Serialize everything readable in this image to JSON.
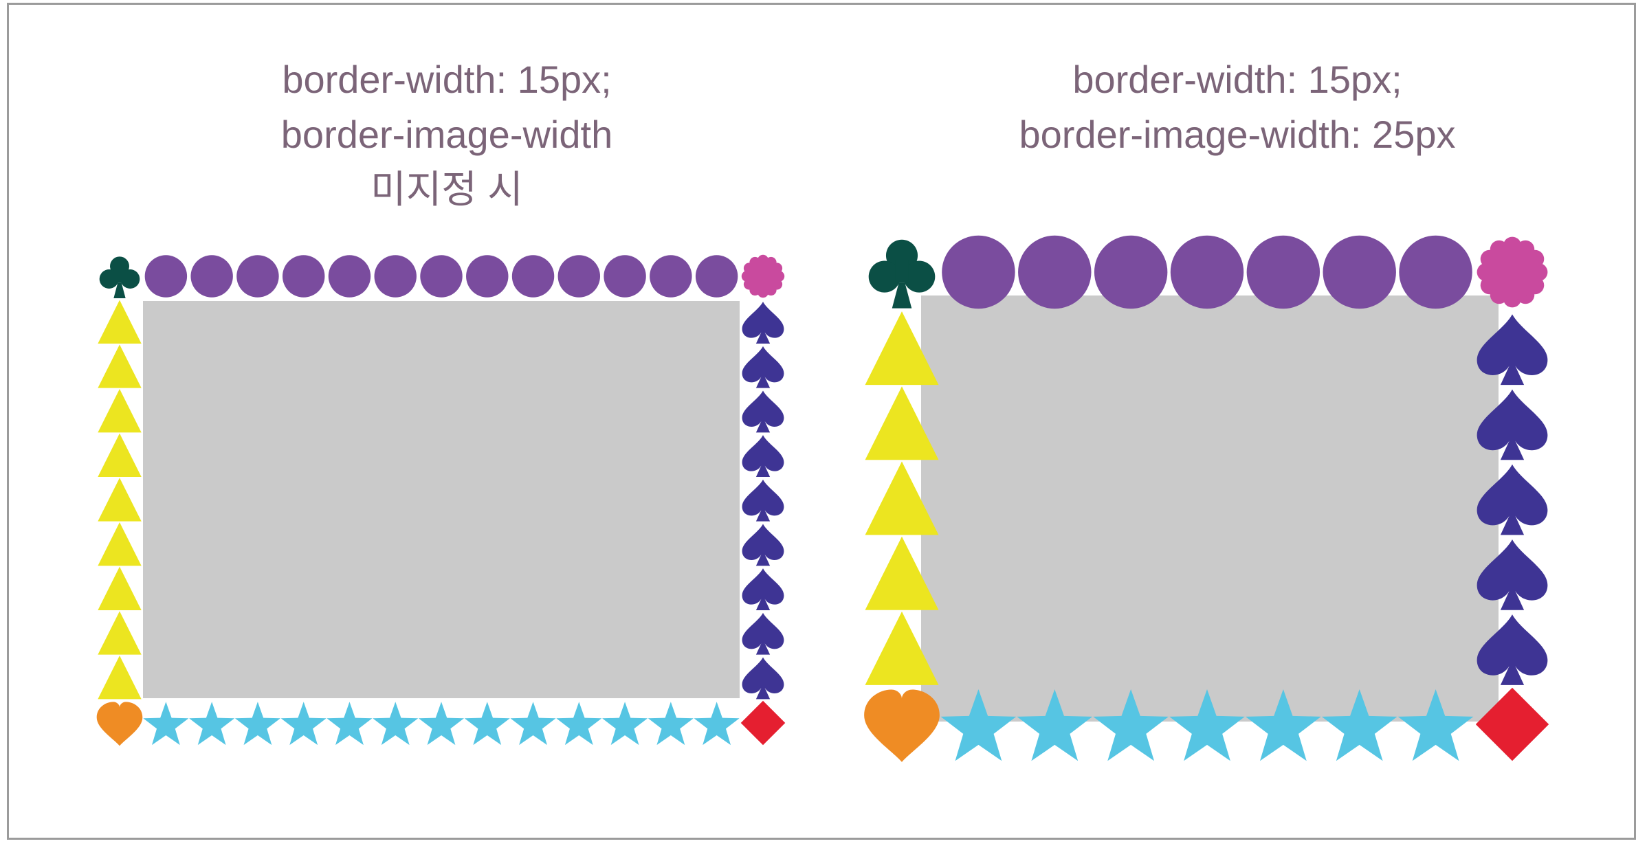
{
  "panels": [
    {
      "caption_lines": [
        "border-width: 15px;",
        "border-image-width",
        "미지정 시"
      ]
    },
    {
      "caption_lines": [
        "border-width: 15px;",
        "border-image-width: 25px"
      ]
    }
  ],
  "colors": {
    "frame_border": "#9b9b9b",
    "caption_text": "#7b6478",
    "content_fill": "#cacaca",
    "circle": "#7a4c9e",
    "club": "#0b4f45",
    "flower": "#c94a9e",
    "triangle": "#ece520",
    "spade": "#3e3494",
    "heart": "#ef8c24",
    "star": "#56c5e3",
    "diamond": "#e51f30"
  },
  "icons": [
    "club-icon",
    "circle-icon",
    "flower-icon",
    "triangle-icon",
    "spade-icon",
    "heart-icon",
    "star-icon",
    "diamond-icon"
  ]
}
